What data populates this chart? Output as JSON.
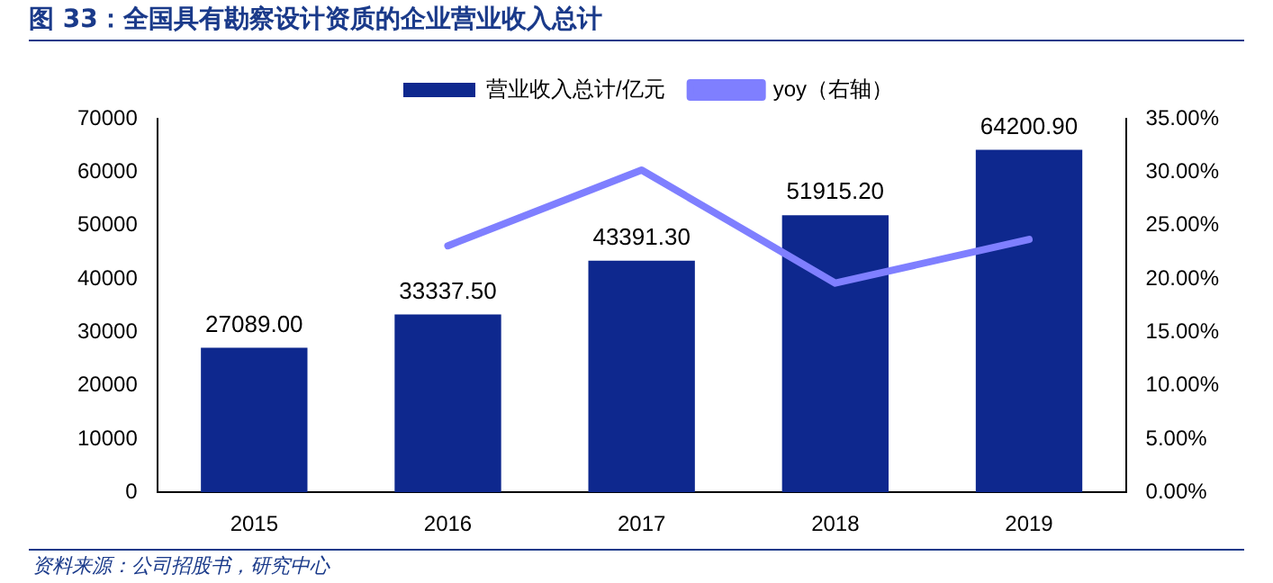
{
  "chart_data": {
    "type": "bar",
    "title": "图 33：全国具有勘察设计资质的企业营业收入总计",
    "categories": [
      "2015",
      "2016",
      "2017",
      "2018",
      "2019"
    ],
    "series": [
      {
        "name": "营业收入总计/亿元",
        "color": "#0e288e",
        "values": [
          27089.0,
          33337.5,
          43391.3,
          51915.2,
          64200.9
        ],
        "value_labels": [
          "27089.00",
          "33337.50",
          "43391.30",
          "51915.20",
          "64200.90"
        ]
      },
      {
        "name": "yoy（右轴）",
        "type": "line",
        "axis": "y2",
        "color": "#7f7fff",
        "values": [
          null,
          23.1,
          30.2,
          19.6,
          23.7
        ]
      }
    ],
    "ylim": [
      0,
      70000
    ],
    "yticks": [
      0,
      10000,
      20000,
      30000,
      40000,
      50000,
      60000,
      70000
    ],
    "y2lim": [
      0,
      35
    ],
    "y2ticks": [
      {
        "value": 0,
        "label": "0.00%"
      },
      {
        "value": 5,
        "label": "5.00%"
      },
      {
        "value": 10,
        "label": "10.00%"
      },
      {
        "value": 15,
        "label": "15.00%"
      },
      {
        "value": 20,
        "label": "20.00%"
      },
      {
        "value": 25,
        "label": "25.00%"
      },
      {
        "value": 30,
        "label": "30.00%"
      },
      {
        "value": 35,
        "label": "35.00%"
      }
    ],
    "grid": false,
    "legend": "top",
    "marker": "none",
    "line_style": "solid",
    "annotations": [
      "资料来源：公司招股书，研究中心"
    ]
  }
}
